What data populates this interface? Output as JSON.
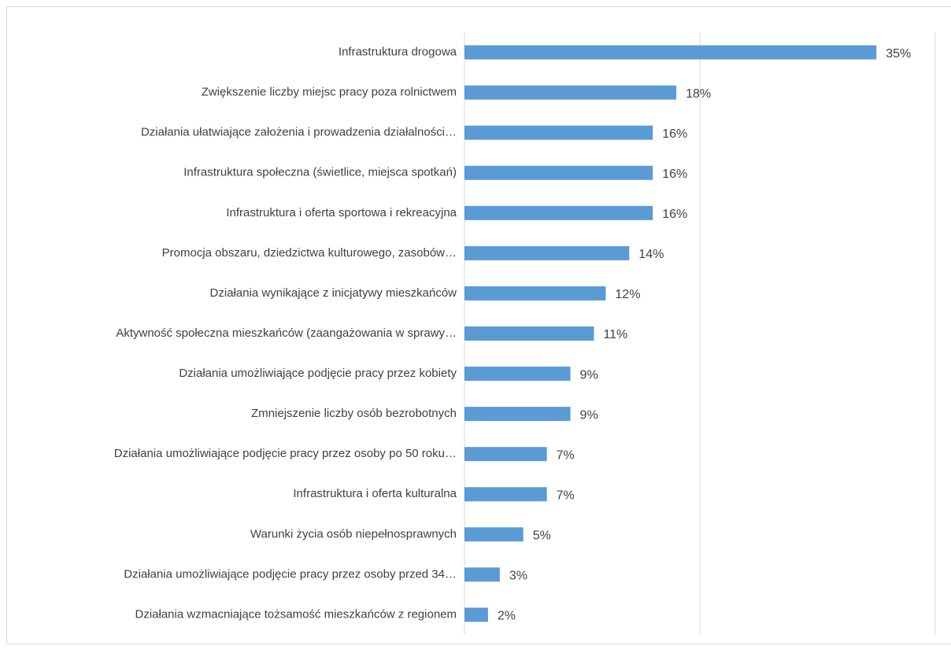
{
  "chart_data": {
    "type": "bar",
    "orientation": "horizontal",
    "categories": [
      "Infrastruktura drogowa",
      "Zwiększenie liczby miejsc pracy poza rolnictwem",
      "Działania ułatwiające założenia i prowadzenia działalności…",
      "Infrastruktura społeczna (świetlice, miejsca spotkań)",
      "Infrastruktura i oferta sportowa i rekreacyjna",
      "Promocja obszaru, dziedzictwa kulturowego, zasobów…",
      "Działania wynikające z inicjatywy mieszkańców",
      "Aktywność społeczna mieszkańców (zaangażowania w sprawy…",
      "Działania umożliwiające podjęcie pracy przez kobiety",
      "Zmniejszenie liczby osób bezrobotnych",
      "Działania umożliwiające podjęcie pracy przez osoby po 50 roku…",
      "Infrastruktura i oferta kulturalna",
      "Warunki życia osób niepełnosprawnych",
      "Działania umożliwiające podjęcie pracy przez osoby przed 34…",
      "Działania wzmacniające tożsamość mieszkańców z regionem"
    ],
    "values": [
      35,
      18,
      16,
      16,
      16,
      14,
      12,
      11,
      9,
      9,
      7,
      7,
      5,
      3,
      2
    ],
    "value_labels": [
      "35%",
      "18%",
      "16%",
      "16%",
      "16%",
      "14%",
      "12%",
      "11%",
      "9%",
      "9%",
      "7%",
      "7%",
      "5%",
      "3%",
      "2%"
    ],
    "color": "#5b9bd5",
    "xlim": [
      0,
      40
    ],
    "xticks": [
      0,
      20,
      40
    ],
    "grid": true
  }
}
